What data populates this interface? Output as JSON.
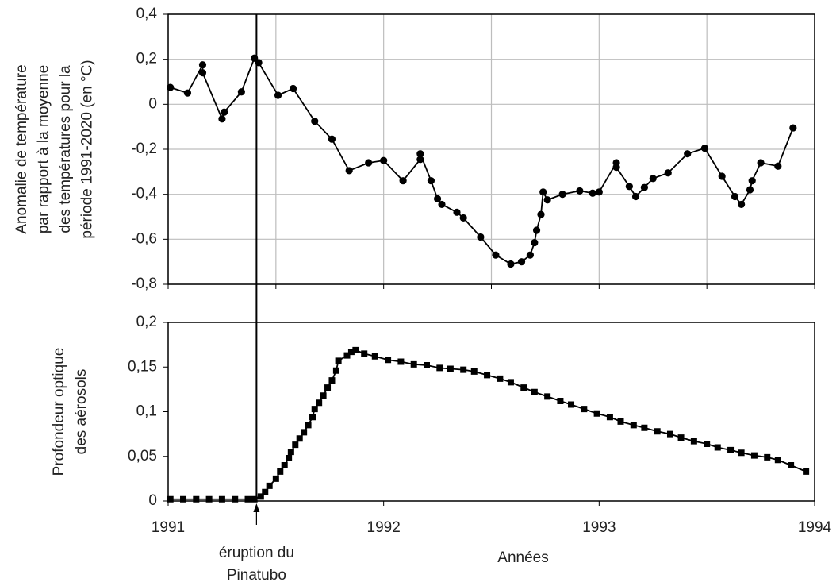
{
  "chart_data": [
    {
      "type": "line",
      "marker": "circle",
      "ylabel": [
        "Anomalie de température",
        "par rapport à la moyenne",
        "des températures pour la",
        "période 1991-2020 (en °C)"
      ],
      "xlim": [
        1991,
        1994
      ],
      "xticks": [
        1991,
        1991.5,
        1992,
        1992.5,
        1993,
        1993.5,
        1994
      ],
      "x_tick_labels": false,
      "ylim": [
        -0.8,
        0.4
      ],
      "yticks": [
        {
          "value": -0.8,
          "label": "-0,8"
        },
        {
          "value": -0.6,
          "label": "-0,6"
        },
        {
          "value": -0.4,
          "label": "-0,4"
        },
        {
          "value": -0.2,
          "label": "-0,2"
        },
        0,
        {
          "value": 0.2,
          "label": "0,2"
        },
        {
          "value": 0.4,
          "label": "0,4"
        }
      ],
      "grid": true,
      "x": [
        1991.01,
        1991.09,
        1991.16,
        1991.16,
        1991.25,
        1991.26,
        1991.34,
        1991.4,
        1991.42,
        1991.51,
        1991.58,
        1991.68,
        1991.76,
        1991.84,
        1991.93,
        1992.0,
        1992.09,
        1992.17,
        1992.17,
        1992.22,
        1992.25,
        1992.27,
        1992.34,
        1992.37,
        1992.45,
        1992.52,
        1992.59,
        1992.64,
        1992.68,
        1992.7,
        1992.71,
        1992.73,
        1992.74,
        1992.76,
        1992.83,
        1992.91,
        1992.97,
        1993.0,
        1993.08,
        1993.08,
        1993.14,
        1993.17,
        1993.21,
        1993.25,
        1993.32,
        1993.41,
        1993.49,
        1993.57,
        1993.63,
        1993.66,
        1993.7,
        1993.71,
        1993.75,
        1993.83,
        1993.9
      ],
      "series": [
        {
          "color": "#000000",
          "values": [
            0.075,
            0.05,
            0.175,
            0.14,
            -0.065,
            -0.035,
            0.055,
            0.205,
            0.185,
            0.04,
            0.07,
            -0.075,
            -0.155,
            -0.295,
            -0.26,
            -0.25,
            -0.34,
            -0.245,
            -0.22,
            -0.34,
            -0.42,
            -0.445,
            -0.48,
            -0.505,
            -0.59,
            -0.67,
            -0.71,
            -0.7,
            -0.67,
            -0.615,
            -0.56,
            -0.49,
            -0.39,
            -0.425,
            -0.4,
            -0.385,
            -0.395,
            -0.39,
            -0.26,
            -0.28,
            -0.365,
            -0.41,
            -0.37,
            -0.33,
            -0.305,
            -0.22,
            -0.195,
            -0.32,
            -0.41,
            -0.445,
            -0.38,
            -0.34,
            -0.26,
            -0.275,
            -0.105
          ]
        }
      ]
    },
    {
      "type": "line",
      "marker": "square",
      "ylabel": [
        "Profondeur optique",
        "des aérosols"
      ],
      "xlabel": "Années",
      "xlim": [
        1991,
        1994
      ],
      "xticks": [
        1991,
        1992,
        1993,
        1994
      ],
      "ylim": [
        0,
        0.2
      ],
      "yticks": [
        0,
        {
          "value": 0.05,
          "label": "0,05"
        },
        {
          "value": 0.1,
          "label": "0,1"
        },
        {
          "value": 0.15,
          "label": "0,15"
        },
        {
          "value": 0.2,
          "label": "0,2"
        }
      ],
      "grid": false,
      "annotation": {
        "x": 1991.41,
        "lines": [
          "éruption du",
          "Pinatubo"
        ]
      },
      "x": [
        1991.01,
        1991.07,
        1991.13,
        1991.19,
        1991.25,
        1991.31,
        1991.37,
        1991.4,
        1991.43,
        1991.45,
        1991.47,
        1991.5,
        1991.52,
        1991.54,
        1991.56,
        1991.57,
        1991.59,
        1991.61,
        1991.63,
        1991.65,
        1991.67,
        1991.68,
        1991.7,
        1991.72,
        1991.74,
        1991.76,
        1991.78,
        1991.79,
        1991.83,
        1991.85,
        1991.87,
        1991.91,
        1991.96,
        1992.02,
        1992.08,
        1992.14,
        1992.2,
        1992.26,
        1992.31,
        1992.37,
        1992.42,
        1992.48,
        1992.54,
        1992.59,
        1992.65,
        1992.7,
        1992.76,
        1992.82,
        1992.87,
        1992.93,
        1992.99,
        1993.05,
        1993.1,
        1993.16,
        1993.21,
        1993.27,
        1993.33,
        1993.38,
        1993.44,
        1993.5,
        1993.55,
        1993.61,
        1993.66,
        1993.72,
        1993.78,
        1993.83,
        1993.89,
        1993.96
      ],
      "series": [
        {
          "color": "#000000",
          "values": [
            0.002,
            0.002,
            0.002,
            0.002,
            0.002,
            0.002,
            0.002,
            0.002,
            0.005,
            0.01,
            0.017,
            0.025,
            0.033,
            0.04,
            0.048,
            0.055,
            0.063,
            0.07,
            0.077,
            0.085,
            0.094,
            0.103,
            0.11,
            0.118,
            0.127,
            0.135,
            0.146,
            0.157,
            0.163,
            0.167,
            0.169,
            0.165,
            0.162,
            0.158,
            0.156,
            0.153,
            0.152,
            0.149,
            0.148,
            0.147,
            0.145,
            0.141,
            0.137,
            0.133,
            0.127,
            0.122,
            0.117,
            0.112,
            0.108,
            0.103,
            0.098,
            0.094,
            0.089,
            0.085,
            0.082,
            0.078,
            0.075,
            0.071,
            0.067,
            0.064,
            0.06,
            0.057,
            0.054,
            0.051,
            0.049,
            0.046,
            0.04,
            0.033
          ]
        }
      ]
    }
  ]
}
